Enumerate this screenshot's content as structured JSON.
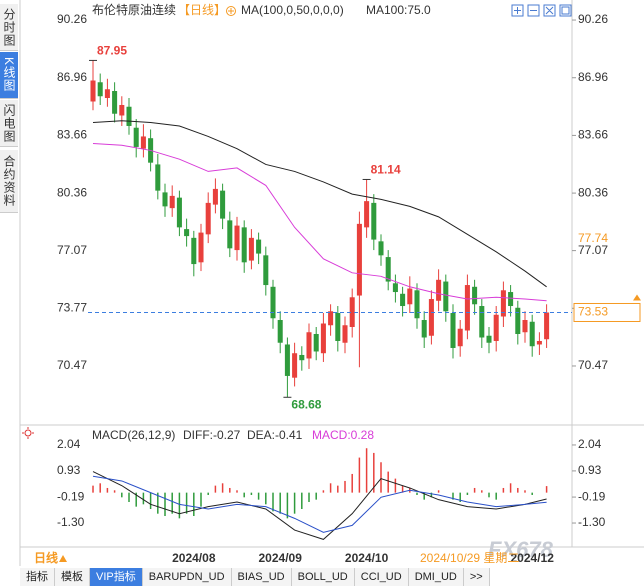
{
  "sidebar": [
    "分时图",
    "K线图",
    "闪电图",
    "合约资料"
  ],
  "tabs": [
    "指标",
    "模板",
    "VIP指标",
    "BARUPDN_UD",
    "BIAS_UD",
    "BOLL_UD",
    "CCI_UD",
    "DMI_UD",
    ">>"
  ],
  "period": "日线",
  "watermark": "FX678",
  "chart_data": [
    {
      "type": "candlestick",
      "title": "布伦特原油连续",
      "period": "【日线】",
      "indicator": "MA(100,0,50,0,0,0)",
      "indicator_value": "MA100:75.0",
      "open": [
        85.6,
        86.7,
        85.8,
        86.2,
        84.8,
        85.3,
        84.1,
        82.9,
        83.5,
        82.0,
        80.4,
        79.5,
        80.1,
        78.3,
        77.8,
        76.4,
        78.0,
        79.7,
        80.5,
        78.8,
        77.1,
        78.4,
        76.5,
        77.7,
        76.8,
        75.0,
        73.1,
        71.7,
        69.8,
        71.1,
        70.9,
        72.3,
        71.2,
        72.8,
        73.5,
        71.8,
        72.7,
        74.5,
        78.4,
        79.8,
        77.6,
        76.7,
        75.2,
        74.6,
        74.0,
        74.8,
        73.1,
        72.2,
        74.2,
        75.3,
        73.5,
        71.6,
        72.5,
        75.0,
        73.9,
        72.2,
        71.9,
        73.3,
        74.7,
        73.8,
        72.4,
        73.0,
        71.7,
        72.0
      ],
      "high": [
        87.95,
        87.2,
        86.9,
        86.7,
        85.9,
        85.8,
        84.6,
        84.3,
        84.0,
        82.6,
        80.9,
        80.8,
        80.5,
        78.9,
        78.2,
        78.6,
        80.4,
        81.2,
        80.9,
        79.3,
        79.0,
        78.8,
        78.3,
        78.1,
        77.3,
        75.4,
        73.6,
        72.1,
        71.8,
        71.6,
        72.9,
        72.7,
        73.5,
        74.0,
        73.9,
        73.3,
        74.9,
        79.3,
        81.14,
        80.3,
        78.0,
        77.1,
        75.7,
        75.0,
        75.6,
        75.2,
        73.6,
        74.8,
        76.0,
        75.7,
        74.0,
        73.1,
        75.7,
        75.4,
        74.3,
        72.7,
        73.9,
        75.3,
        75.1,
        74.2,
        73.6,
        73.4,
        72.4,
        74.0
      ],
      "low": [
        85.1,
        85.4,
        85.3,
        84.4,
        84.2,
        83.7,
        82.4,
        82.4,
        81.6,
        80.0,
        79.0,
        79.0,
        77.9,
        77.3,
        75.6,
        75.9,
        77.5,
        79.2,
        78.3,
        76.7,
        76.5,
        75.8,
        76.0,
        76.3,
        74.5,
        72.6,
        71.2,
        68.68,
        69.3,
        70.2,
        70.3,
        70.8,
        70.7,
        72.2,
        71.3,
        71.2,
        72.1,
        70.4,
        77.8,
        77.1,
        76.2,
        74.8,
        74.1,
        73.3,
        73.5,
        72.6,
        71.5,
        71.7,
        73.6,
        73.0,
        70.9,
        71.0,
        72.0,
        73.4,
        71.5,
        71.2,
        71.3,
        72.7,
        73.3,
        71.7,
        71.8,
        71.0,
        71.1,
        71.5
      ],
      "close": [
        86.8,
        85.9,
        86.3,
        84.9,
        85.4,
        84.2,
        83.0,
        83.6,
        82.1,
        80.5,
        79.6,
        80.2,
        78.4,
        77.9,
        76.3,
        78.1,
        79.8,
        80.6,
        78.9,
        77.2,
        78.5,
        76.4,
        77.8,
        76.9,
        75.1,
        73.2,
        71.8,
        69.9,
        71.2,
        70.8,
        72.4,
        71.3,
        72.9,
        73.6,
        71.9,
        72.8,
        74.4,
        78.6,
        79.9,
        77.7,
        76.8,
        75.3,
        74.7,
        73.9,
        74.9,
        73.2,
        72.1,
        74.3,
        75.4,
        73.6,
        71.5,
        72.6,
        75.1,
        74.0,
        72.1,
        71.8,
        73.4,
        74.8,
        73.9,
        72.3,
        73.1,
        71.6,
        71.9,
        73.53
      ],
      "up_color": "#e8403c",
      "down_color": "#2f9b3c",
      "lines": [
        {
          "color": "#222222",
          "x": [
            0,
            4,
            8,
            12,
            16,
            20,
            24,
            28,
            32,
            36,
            40,
            44,
            48,
            52,
            56,
            60,
            63
          ],
          "values": [
            84.4,
            84.5,
            84.4,
            84.2,
            83.6,
            82.9,
            82.0,
            81.6,
            81.0,
            80.3,
            80.0,
            79.6,
            79.0,
            78.0,
            77.0,
            75.9,
            75.0
          ]
        },
        {
          "color": "#d83cd8",
          "x": [
            0,
            4,
            8,
            12,
            16,
            20,
            24,
            28,
            32,
            36,
            40,
            44,
            48,
            52,
            56,
            60,
            63
          ],
          "values": [
            83.2,
            83.1,
            82.8,
            82.3,
            81.6,
            81.8,
            80.8,
            78.4,
            76.6,
            75.8,
            75.6,
            75.0,
            74.6,
            74.3,
            74.4,
            74.3,
            74.2
          ]
        }
      ],
      "xlim": [
        -10.14,
        66.25
      ],
      "xticks": [
        {
          "value": 14,
          "label": "2024/08"
        },
        {
          "value": 26,
          "label": "2024/09"
        },
        {
          "value": 38,
          "label": "2024/10"
        },
        {
          "value": 61,
          "label": "2024/12"
        }
      ],
      "ylim": [
        67.38,
        91.12
      ],
      "yticks": [
        90.26,
        86.96,
        83.66,
        80.36,
        77.07,
        73.77,
        70.47
      ],
      "marker_value": 77.74,
      "last_price": 73.53,
      "accent_color": "#f59a23",
      "cursor_date": "2024/10/29 星期二"
    },
    {
      "type": "macd",
      "title": "MACD(26,12,9)",
      "diff_label": "DIFF:-0.27",
      "dea_label": "DEA:-0.41",
      "macd_label": "MACD:0.28",
      "histogram": [
        0.3,
        0.4,
        0.2,
        0.1,
        -0.2,
        -0.4,
        -0.6,
        -0.5,
        -0.7,
        -0.9,
        -1.0,
        -0.9,
        -1.1,
        -0.9,
        -1.0,
        -0.6,
        -0.1,
        0.3,
        0.4,
        0.2,
        0.1,
        -0.2,
        -0.1,
        -0.3,
        -0.5,
        -0.8,
        -0.9,
        -1.1,
        -0.9,
        -0.7,
        -0.4,
        -0.3,
        0.1,
        0.4,
        0.3,
        0.5,
        0.8,
        1.5,
        1.9,
        1.7,
        1.3,
        0.9,
        0.6,
        0.3,
        0.2,
        -0.1,
        -0.3,
        -0.2,
        0.1,
        0.0,
        -0.3,
        -0.4,
        -0.1,
        0.2,
        0.1,
        -0.2,
        -0.3,
        0.2,
        0.4,
        0.2,
        0.1,
        -0.1,
        0.0,
        0.28
      ],
      "x": [
        0,
        4,
        8,
        12,
        16,
        20,
        24,
        28,
        32,
        36,
        40,
        44,
        48,
        52,
        56,
        60,
        63
      ],
      "diff": [
        0.9,
        0.3,
        -0.5,
        -0.9,
        -0.6,
        -0.4,
        -0.7,
        -1.6,
        -2.0,
        -0.9,
        0.6,
        0.2,
        -0.3,
        -0.6,
        -0.7,
        -0.5,
        -0.27
      ],
      "dea": [
        0.7,
        0.5,
        0.0,
        -0.5,
        -0.7,
        -0.5,
        -0.6,
        -1.1,
        -1.7,
        -1.4,
        -0.2,
        0.1,
        -0.1,
        -0.4,
        -0.6,
        -0.5,
        -0.41
      ],
      "diff_color": "#222222",
      "dea_color": "#2a50c8",
      "macd_color": "#d83cd8",
      "ylim": [
        -2.24,
        2.68
      ],
      "yticks": [
        2.04,
        0.93,
        -0.19,
        {
          "value": -1.3,
          "label": "-1.30"
        }
      ]
    }
  ]
}
